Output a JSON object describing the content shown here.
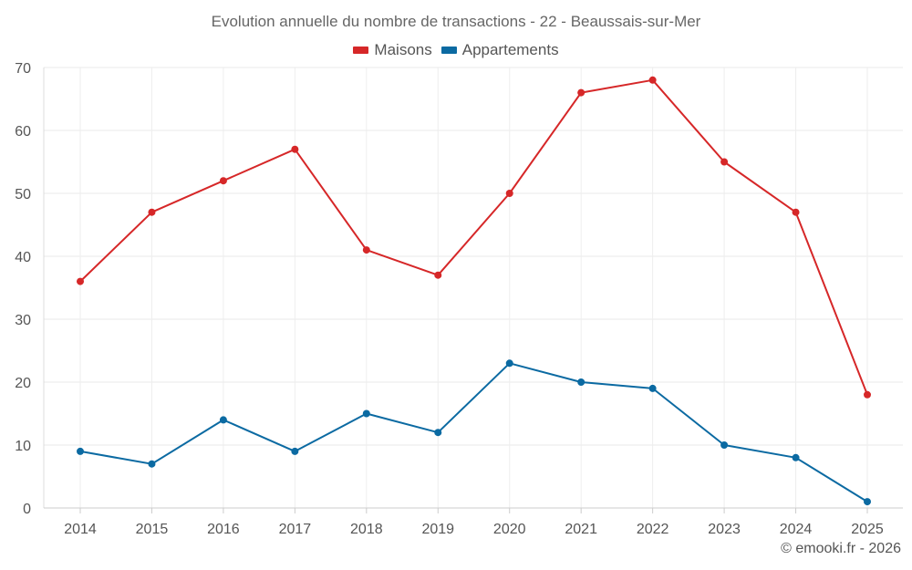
{
  "chart_data": {
    "type": "line",
    "title": "Evolution annuelle du nombre de transactions - 22 - Beaussais-sur-Mer",
    "categories": [
      "2014",
      "2015",
      "2016",
      "2017",
      "2018",
      "2019",
      "2020",
      "2021",
      "2022",
      "2023",
      "2024",
      "2025"
    ],
    "series": [
      {
        "name": "Maisons",
        "color": "#d62728",
        "values": [
          36,
          47,
          52,
          57,
          41,
          37,
          50,
          66,
          68,
          55,
          47,
          18
        ]
      },
      {
        "name": "Appartements",
        "color": "#0b6aa2",
        "values": [
          9,
          7,
          14,
          9,
          15,
          12,
          23,
          20,
          19,
          10,
          8,
          1
        ]
      }
    ],
    "ylim": [
      0,
      70
    ],
    "yticks": [
      0,
      10,
      20,
      30,
      40,
      50,
      60,
      70
    ],
    "xlabel": "",
    "ylabel": "",
    "grid": true,
    "legend": "top-center"
  },
  "credit": "© emooki.fr - 2026"
}
